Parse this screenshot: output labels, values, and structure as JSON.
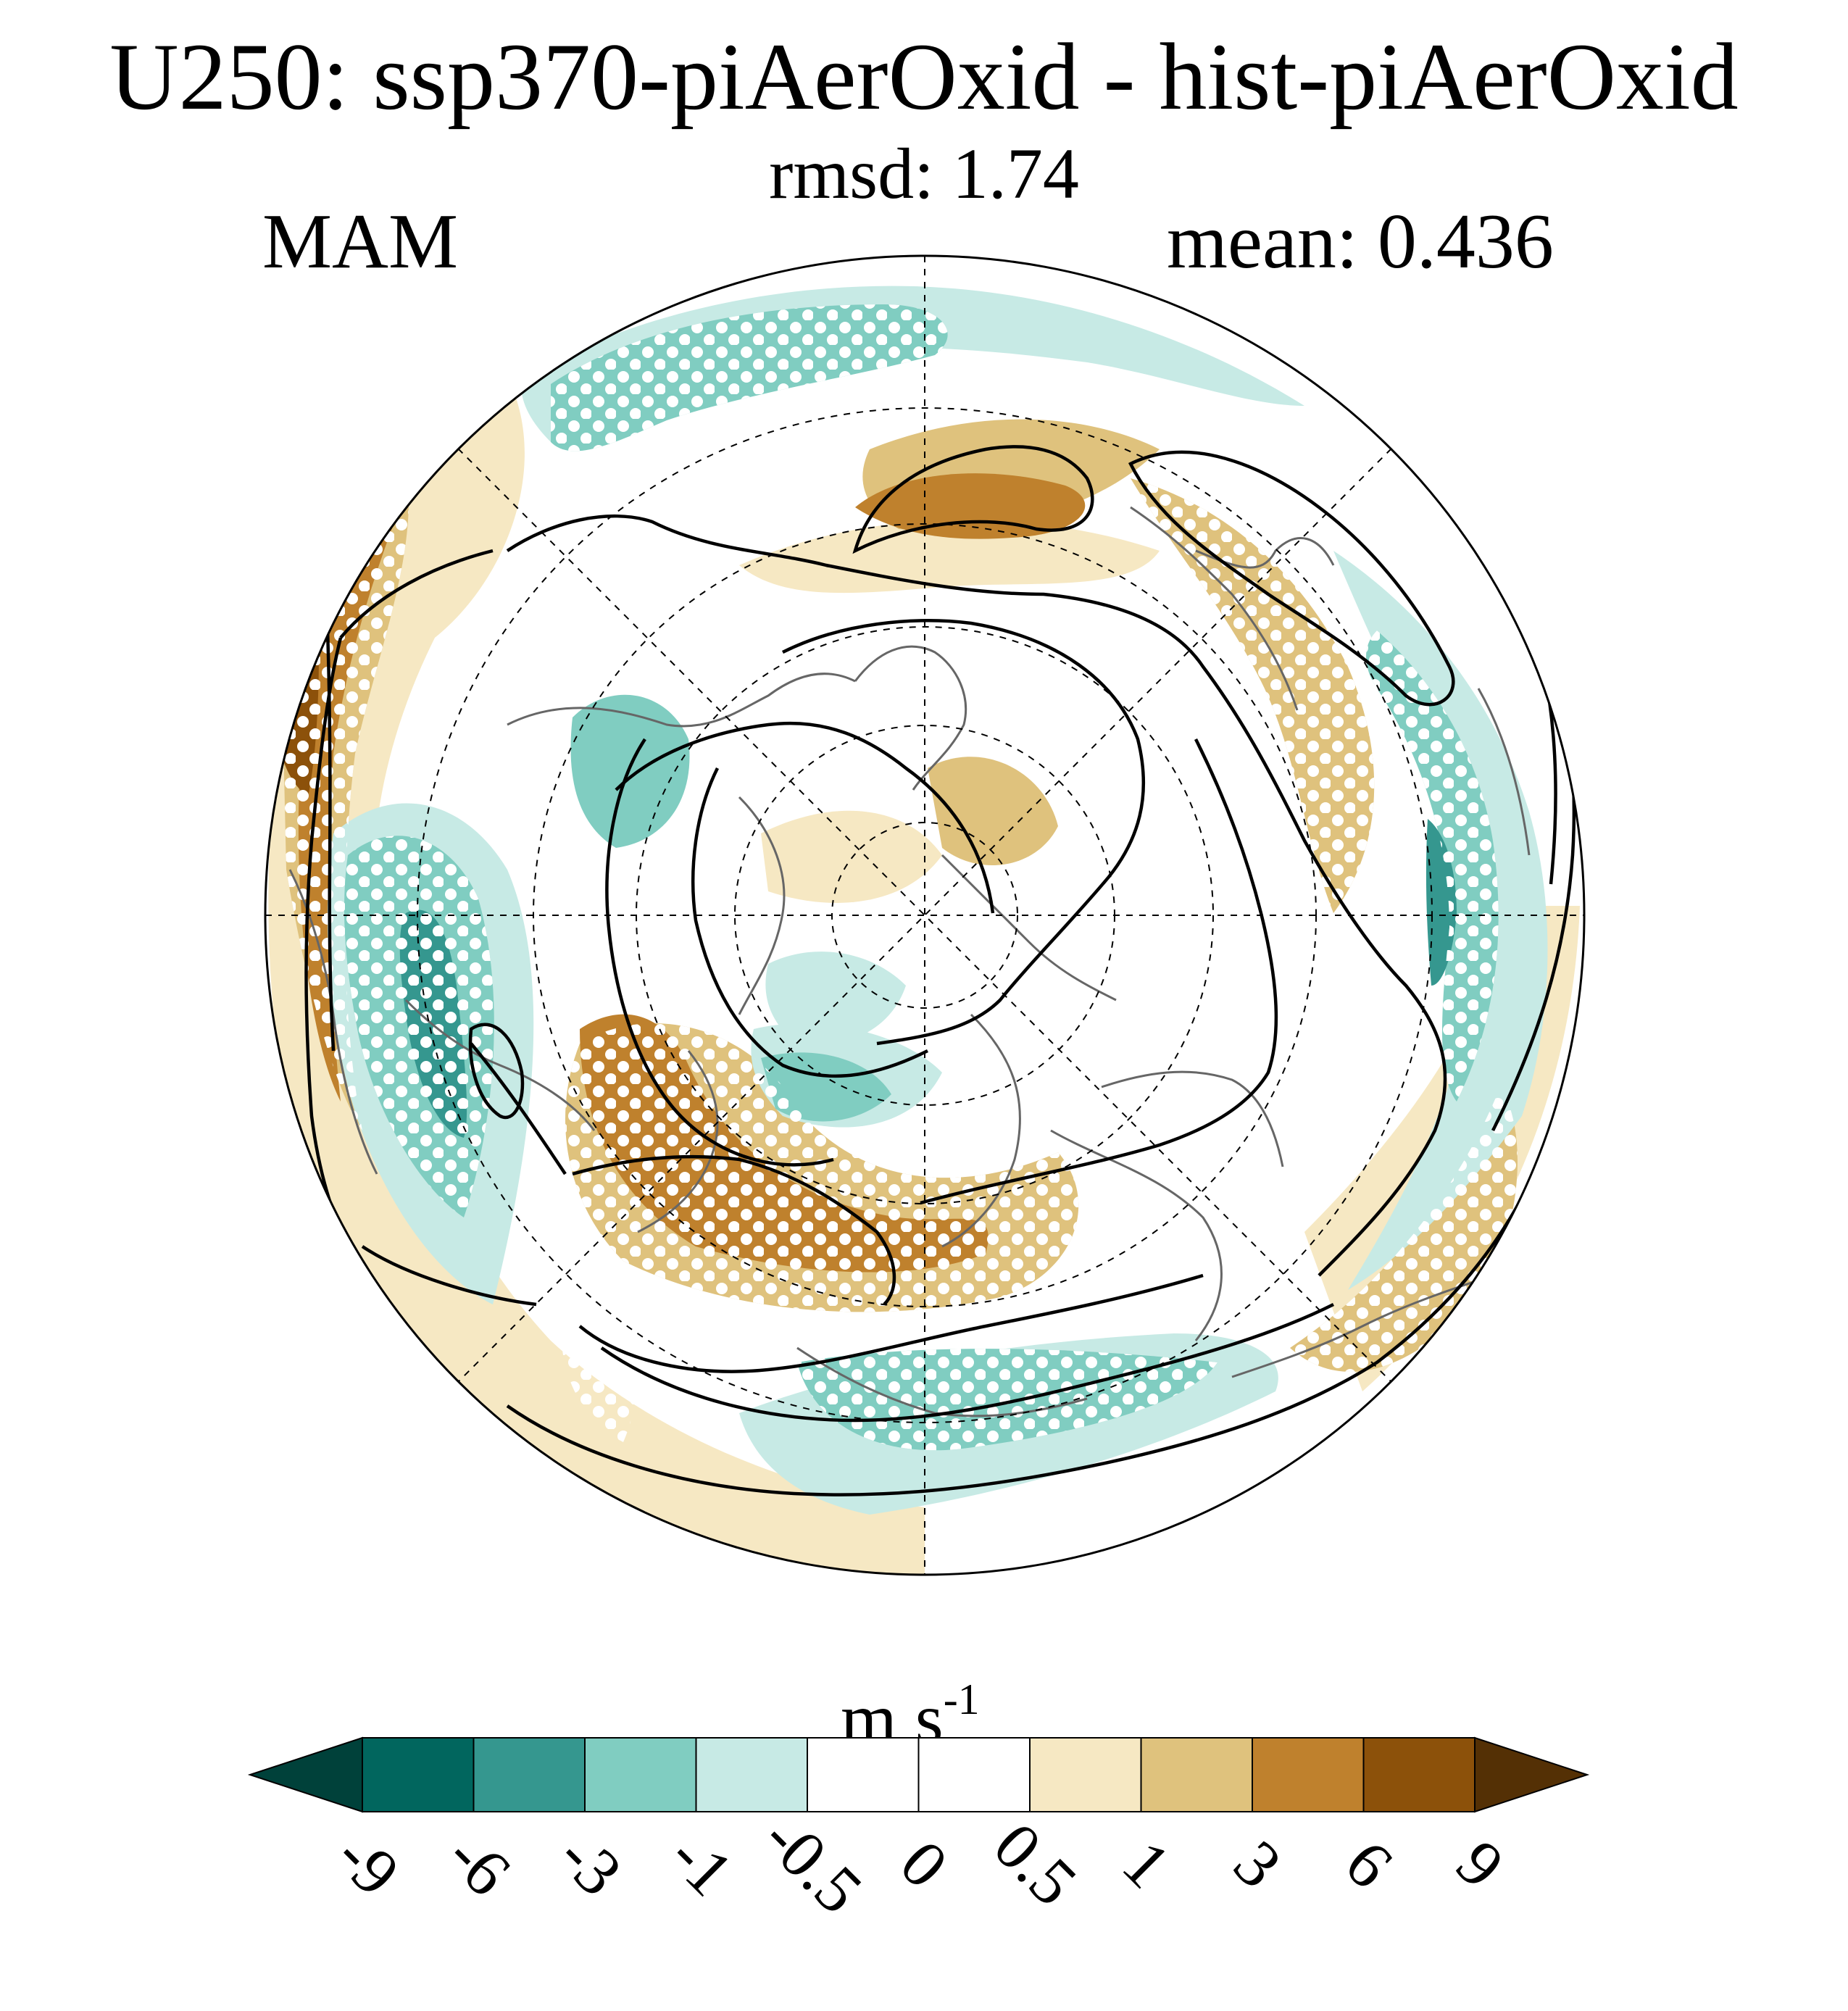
{
  "header": {
    "title": "U250: ssp370-piAerOxid - hist-piAerOxid",
    "subtitle": "rmsd: 1.74",
    "season": "MAM",
    "mean": "mean: 0.436"
  },
  "map": {
    "projection": "north polar stereographic",
    "variable": "U250 difference",
    "stippling": "white dots",
    "overlay": "black contour lines",
    "coastline_color": "#666666",
    "grid": "dashed"
  },
  "colorbar": {
    "units_main": "m s",
    "units_exp": "-1",
    "levels": [
      "-9",
      "-6",
      "-3",
      "-1",
      "-0.5",
      "0",
      "0.5",
      "1",
      "3",
      "6",
      "9"
    ],
    "colors": [
      "#00413a",
      "#01665e",
      "#35978f",
      "#80cdc1",
      "#c7eae5",
      "#ffffff",
      "#ffffff",
      "#f6e8c3",
      "#dfc27d",
      "#bf812d",
      "#8c510a",
      "#543005"
    ]
  }
}
